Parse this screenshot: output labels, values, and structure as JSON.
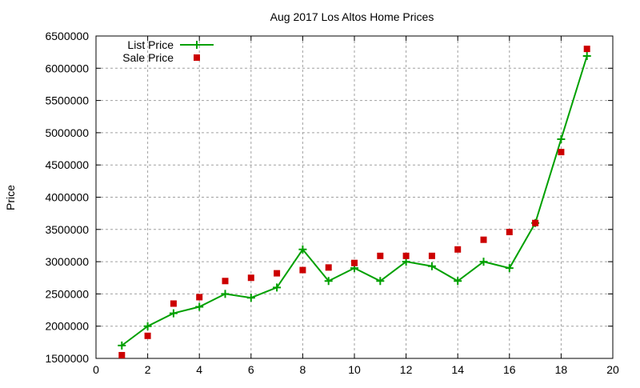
{
  "chart_data": {
    "type": "line",
    "title": "Aug 2017 Los Altos Home Prices",
    "xlabel": "",
    "ylabel": "Price",
    "xlim": [
      0,
      20
    ],
    "ylim": [
      1500000,
      6500000
    ],
    "xticks": [
      0,
      2,
      4,
      6,
      8,
      10,
      12,
      14,
      16,
      18,
      20
    ],
    "yticks": [
      1500000,
      2000000,
      2500000,
      3000000,
      3500000,
      4000000,
      4500000,
      5000000,
      5500000,
      6000000,
      6500000
    ],
    "grid": true,
    "legend_position": "top-left",
    "x": [
      1,
      2,
      3,
      4,
      5,
      6,
      7,
      8,
      9,
      10,
      11,
      12,
      13,
      14,
      15,
      16,
      17,
      18,
      19
    ],
    "series": [
      {
        "name": "List Price",
        "style": "linespoints",
        "color": "#00a000",
        "values": [
          1700000,
          2000000,
          2200000,
          2300000,
          2500000,
          2440000,
          2600000,
          3190000,
          2700000,
          2900000,
          2700000,
          3000000,
          2930000,
          2700000,
          3000000,
          2900000,
          3600000,
          4900000,
          6190000
        ]
      },
      {
        "name": "Sale Price",
        "style": "points",
        "color": "#cc0000",
        "values": [
          1550000,
          1850000,
          2350000,
          2450000,
          2700000,
          2750000,
          2820000,
          2870000,
          2910000,
          2980000,
          3090000,
          3090000,
          3090000,
          3190000,
          3340000,
          3460000,
          3600000,
          4700000,
          6300000
        ]
      }
    ]
  }
}
